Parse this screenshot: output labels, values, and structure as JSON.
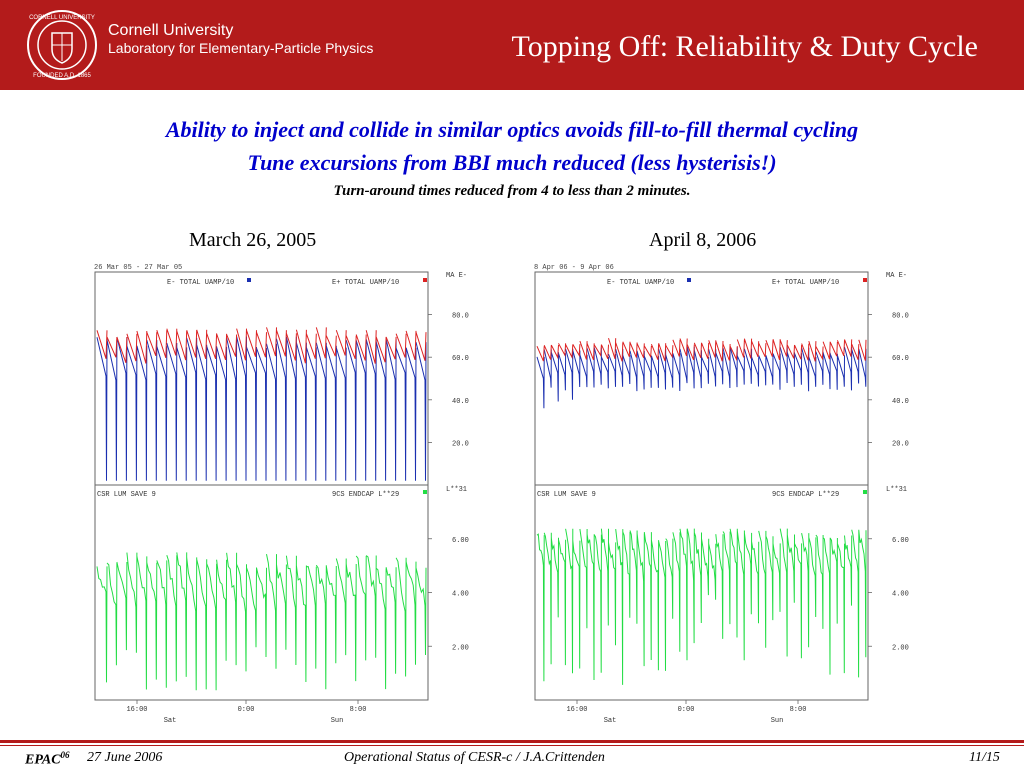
{
  "header": {
    "org_line1": "Cornell University",
    "org_line2": "Laboratory for Elementary-Particle Physics",
    "title": "Topping Off:  Reliability & Duty Cycle"
  },
  "body": {
    "line1": "Ability to inject and collide in similar optics avoids fill-to-fill thermal cycling",
    "line2": "Tune excursions from BBI much reduced (less hysterisis!)",
    "line3": "Turn-around times reduced from 4  to less than 2 minutes."
  },
  "panels": [
    {
      "date": "March 26, 2005",
      "header_text": "26 Mar  05 - 27 Mar  05",
      "top_legend_left": "E- TOTAL UAMP/10",
      "top_legend_right": "E+ TOTAL UAMP/10",
      "top_units": "MA E-",
      "top_ticks": [
        "80.0",
        "60.0",
        "40.0",
        "20.0"
      ],
      "bottom_legend_left": "CSR LUM SAVE    9",
      "bottom_legend_right": "9CS ENDCAP L**29",
      "bottom_units": "L**31",
      "bottom_ticks": [
        "6.00",
        "4.00",
        "2.00"
      ],
      "x_ticks": [
        "16:00",
        "0:00",
        "8:00"
      ],
      "x_days": [
        "Sat",
        "Sun"
      ]
    },
    {
      "date": "April 8, 2006",
      "header_text": "8 Apr  06 - 9 Apr  06",
      "top_legend_left": "E- TOTAL UAMP/10",
      "top_legend_right": "E+ TOTAL UAMP/10",
      "top_units": "MA E-",
      "top_ticks": [
        "80.0",
        "60.0",
        "40.0",
        "20.0"
      ],
      "bottom_legend_left": "CSR LUM SAVE    9",
      "bottom_legend_right": "9CS ENDCAP L**29",
      "bottom_units": "L**31",
      "bottom_ticks": [
        "6.00",
        "4.00",
        "2.00"
      ],
      "x_ticks": [
        "16:00",
        "0:00",
        "8:00"
      ],
      "x_days": [
        "Sat",
        "Sun"
      ]
    }
  ],
  "footer": {
    "conf": "EPAC",
    "conf_sup": "06",
    "date": "27 June 2006",
    "center": "Operational Status of CESR-c / J.A.Crittenden",
    "page": "11/15"
  },
  "colors": {
    "header_bg": "#b31b1b",
    "emphasis_blue": "#0000cc",
    "positron_red": "#dd2222",
    "electron_blue": "#1a2fb0",
    "luminosity_green": "#22dd44"
  }
}
